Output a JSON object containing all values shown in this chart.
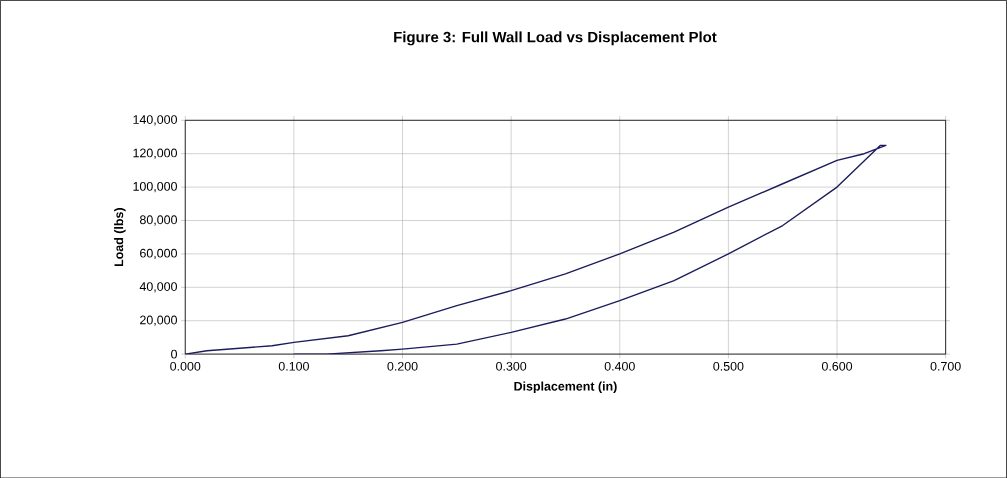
{
  "chart_data": {
    "type": "line",
    "title": "Figure 3: Full Wall Load vs Displacement Plot",
    "xlabel": "Displacement (in)",
    "ylabel": "Load (lbs)",
    "x": [
      0,
      0.02,
      0.08,
      0.1,
      0.15,
      0.2,
      0.25,
      0.3,
      0.35,
      0.4,
      0.45,
      0.5,
      0.55,
      0.6,
      0.625,
      0.645,
      0.64,
      0.6,
      0.55,
      0.5,
      0.45,
      0.4,
      0.35,
      0.3,
      0.25,
      0.2,
      0.18,
      0.13,
      0.1
    ],
    "values": [
      0,
      2000,
      5000,
      7000,
      11000,
      19000,
      29000,
      38000,
      48000,
      60000,
      73000,
      88000,
      102000,
      116000,
      120000,
      125000,
      125000,
      100000,
      77000,
      60000,
      44000,
      32000,
      21000,
      13000,
      6000,
      3000,
      2000,
      0,
      0
    ],
    "color": "#1c1c5c",
    "xlim": [
      0,
      0.7
    ],
    "ylim": [
      0,
      140000
    ],
    "xticks": [
      {
        "value": 0,
        "label": "0.000"
      },
      {
        "value": 0.1,
        "label": "0.100"
      },
      {
        "value": 0.2,
        "label": "0.200"
      },
      {
        "value": 0.3,
        "label": "0.300"
      },
      {
        "value": 0.4,
        "label": "0.400"
      },
      {
        "value": 0.5,
        "label": "0.500"
      },
      {
        "value": 0.6,
        "label": "0.600"
      },
      {
        "value": 0.7,
        "label": "0.700"
      }
    ],
    "yticks": [
      0,
      {
        "value": 20000,
        "label": "20,000"
      },
      {
        "value": 40000,
        "label": "40,000"
      },
      {
        "value": 60000,
        "label": "60,000"
      },
      {
        "value": 80000,
        "label": "80,000"
      },
      {
        "value": 100000,
        "label": "100,000"
      },
      {
        "value": 120000,
        "label": "120,000"
      },
      {
        "value": 140000,
        "label": "140,000"
      }
    ],
    "grid": true,
    "marker": "none",
    "line_style": "solid"
  }
}
